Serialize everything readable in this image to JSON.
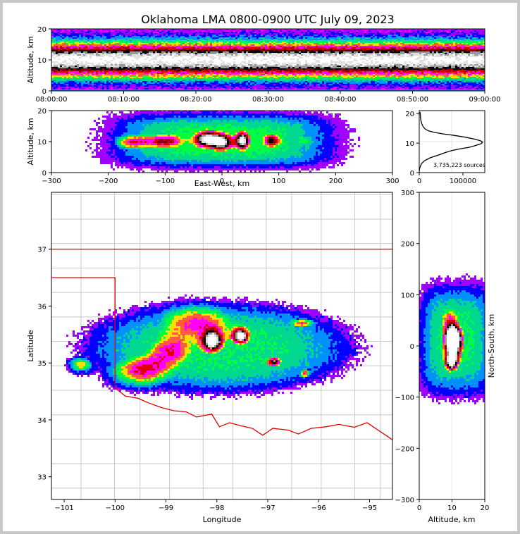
{
  "chart_data": [
    {
      "id": "time_height",
      "type": "heatmap",
      "title": "Oklahoma LMA 0800-0900 UTC July 09, 2023",
      "ylabel": "Altitude, km",
      "ylim": [
        0,
        20
      ],
      "yticks": [
        "0",
        "10",
        "20"
      ],
      "xticks": [
        "08:00:00",
        "08:10:00",
        "08:20:00",
        "08:30:00",
        "08:40:00",
        "08:50:00",
        "09:00:00"
      ],
      "density_peak_altitude_km": 10
    },
    {
      "id": "east_west_altitude",
      "type": "heatmap",
      "xlabel": "East-West, km",
      "ylabel": "Altitude, km",
      "xlim": [
        -300,
        300
      ],
      "ylim": [
        0,
        20
      ],
      "xticks": [
        "−300",
        "−200",
        "−100",
        "0",
        "100",
        "200",
        "300"
      ],
      "yticks": [
        "0",
        "10",
        "20"
      ]
    },
    {
      "id": "altitude_histogram",
      "type": "line",
      "xlim": [
        0,
        150000
      ],
      "ylim": [
        0,
        21
      ],
      "xticks": [
        "0",
        "100000"
      ],
      "yticks": [
        "0",
        "10",
        "20"
      ],
      "annotation": "3,735,223 sources",
      "x": [
        0,
        1000,
        5000,
        12000,
        25000,
        45000,
        60000,
        75000,
        95000,
        115000,
        130000,
        142000,
        145000,
        140000,
        125000,
        105000,
        80000,
        55000,
        35000,
        22000,
        14000,
        9000,
        6000,
        4000,
        3000,
        2500,
        2000
      ],
      "y": [
        0.3,
        1.5,
        3,
        4,
        5,
        6,
        6.8,
        7.5,
        8.1,
        8.6,
        9.2,
        9.8,
        10.3,
        10.8,
        11.4,
        12,
        12.6,
        13.1,
        13.6,
        14.1,
        14.7,
        15.5,
        16.5,
        17.5,
        18.5,
        19.5,
        20.5
      ]
    },
    {
      "id": "plan_view",
      "type": "heatmap",
      "xlabel": "Longitude",
      "ylabel": "Latitude",
      "xlim": [
        -101.25,
        -94.55
      ],
      "ylim": [
        32.6,
        38
      ],
      "xticks": [
        "−101",
        "−100",
        "−99",
        "−98",
        "−97",
        "−96",
        "−95"
      ],
      "yticks": [
        "33",
        "34",
        "35",
        "36",
        "37"
      ],
      "storm_cores": [
        {
          "lon": -98.1,
          "lat": 35.35
        },
        {
          "lon": -97.5,
          "lat": 35.45
        },
        {
          "lon": -96.9,
          "lat": 35.0
        }
      ]
    },
    {
      "id": "altitude_north_south",
      "type": "heatmap",
      "xlabel": "Altitude, km",
      "ylabel": "North-South, km",
      "xlim": [
        0,
        20
      ],
      "ylim": [
        -300,
        300
      ],
      "xticks": [
        "0",
        "10",
        "20"
      ],
      "yticks": [
        "−300",
        "−200",
        "−100",
        "0",
        "100",
        "200",
        "300"
      ]
    }
  ],
  "colors": {
    "density_scale": [
      "#ffffff",
      "#e0e0e0",
      "#9a9a9a",
      "#000000",
      "#8b0000",
      "#e00000",
      "#ff00ff",
      "#ff5a40",
      "#ffdd00",
      "#00ff40",
      "#00d890",
      "#0090ff",
      "#0000ff",
      "#a000ff",
      "#ff00ff"
    ],
    "state_border": "#e00000",
    "county_lines": "#c8c8c8",
    "axes": "#000000",
    "frame_bg": "#c8c8c8"
  }
}
